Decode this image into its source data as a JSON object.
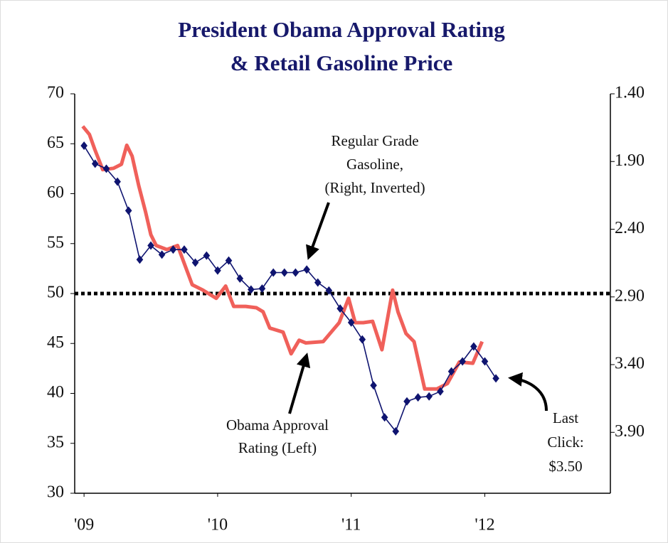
{
  "chart_data": {
    "type": "line",
    "title": [
      "President Obama Approval Rating",
      "& Retail Gasoline Price"
    ],
    "xlim": [
      2008.93,
      2012.94
    ],
    "xticks": [
      {
        "value": 2009,
        "label": "'09"
      },
      {
        "value": 2010,
        "label": "'10"
      },
      {
        "value": 2011,
        "label": "'11"
      },
      {
        "value": 2012,
        "label": "'12"
      }
    ],
    "ylim": [
      30,
      70
    ],
    "yticks": [
      30,
      35,
      40,
      45,
      50,
      55,
      60,
      65,
      70
    ],
    "y2lim": [
      4.35,
      1.4
    ],
    "y2ticks": [
      {
        "value": 1.4,
        "label": "1.40"
      },
      {
        "value": 1.9,
        "label": "1.90"
      },
      {
        "value": 2.4,
        "label": "2.40"
      },
      {
        "value": 2.9,
        "label": "2.90"
      },
      {
        "value": 3.4,
        "label": "3.40"
      },
      {
        "value": 3.9,
        "label": "3.90"
      }
    ],
    "reference_line": 50,
    "series": [
      {
        "color": "#0f1470",
        "marker": "diamond",
        "axis": "y",
        "x": [
          2009.0,
          2009.083,
          2009.167,
          2009.25,
          2009.333,
          2009.417,
          2009.5,
          2009.583,
          2009.667,
          2009.75,
          2009.833,
          2009.917,
          2010.0,
          2010.083,
          2010.167,
          2010.25,
          2010.333,
          2010.417,
          2010.5,
          2010.583,
          2010.667,
          2010.75,
          2010.833,
          2010.917,
          2011.0,
          2011.083,
          2011.167,
          2011.25,
          2011.333,
          2011.417,
          2011.5,
          2011.583,
          2011.667,
          2011.75,
          2011.833,
          2011.917,
          2012.0,
          2012.083
        ],
        "values": [
          64.8,
          63.0,
          62.5,
          61.2,
          58.3,
          53.4,
          54.8,
          53.9,
          54.4,
          54.4,
          53.1,
          53.8,
          52.3,
          53.3,
          51.5,
          50.4,
          50.5,
          52.1,
          52.1,
          52.1,
          52.4,
          51.1,
          50.3,
          48.5,
          47.1,
          45.4,
          40.8,
          37.6,
          36.2,
          39.2,
          39.6,
          39.7,
          40.2,
          42.2,
          43.2,
          44.7,
          43.2,
          41.5
        ]
      },
      {
        "color": "#f0605a",
        "marker": "none",
        "axis": "y2",
        "x": [
          2008.99,
          2009.04,
          2009.08,
          2009.14,
          2009.22,
          2009.28,
          2009.32,
          2009.36,
          2009.41,
          2009.46,
          2009.5,
          2009.54,
          2009.62,
          2009.7,
          2009.81,
          2009.89,
          2009.99,
          2010.06,
          2010.12,
          2010.21,
          2010.29,
          2010.34,
          2010.39,
          2010.49,
          2010.55,
          2010.61,
          2010.66,
          2010.79,
          2010.85,
          2010.91,
          2010.98,
          2011.03,
          2011.09,
          2011.16,
          2011.23,
          2011.31,
          2011.35,
          2011.41,
          2011.47,
          2011.55,
          2011.64,
          2011.72,
          2011.81,
          2011.91,
          2011.98
        ],
        "values": [
          1.64,
          1.7,
          1.81,
          1.96,
          1.95,
          1.92,
          1.78,
          1.86,
          2.08,
          2.27,
          2.44,
          2.52,
          2.55,
          2.52,
          2.81,
          2.85,
          2.91,
          2.82,
          2.97,
          2.97,
          2.98,
          3.01,
          3.13,
          3.16,
          3.32,
          3.22,
          3.24,
          3.23,
          3.16,
          3.09,
          2.91,
          3.09,
          3.09,
          3.08,
          3.29,
          2.85,
          3.01,
          3.17,
          3.23,
          3.58,
          3.58,
          3.54,
          3.38,
          3.39,
          3.23
        ]
      }
    ],
    "annotations": [
      {
        "lines": [
          "Regular Grade",
          "Gasoline,",
          "(Right, Inverted)"
        ]
      },
      {
        "lines": [
          "Obama Approval",
          "Rating (Left)"
        ]
      },
      {
        "lines": [
          "Last",
          "Click:",
          "$3.50"
        ]
      }
    ]
  }
}
